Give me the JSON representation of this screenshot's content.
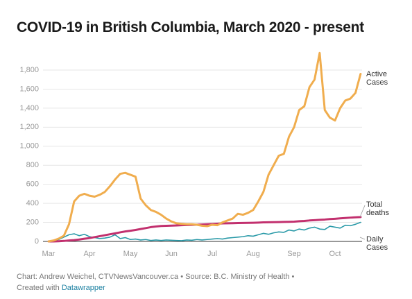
{
  "chart_data": {
    "type": "line",
    "title": "COVID-19 in British Columbia, March 2020 - present",
    "categories": [
      "Mar",
      null,
      null,
      null,
      null,
      null,
      null,
      null,
      "Apr",
      null,
      null,
      null,
      null,
      null,
      null,
      null,
      "May",
      null,
      null,
      null,
      null,
      null,
      null,
      null,
      "Jun",
      null,
      null,
      null,
      null,
      null,
      null,
      null,
      "Jul",
      null,
      null,
      null,
      null,
      null,
      null,
      null,
      "Aug",
      null,
      null,
      null,
      null,
      null,
      null,
      null,
      "Sep",
      null,
      null,
      null,
      null,
      null,
      null,
      null,
      "Oct",
      null,
      null,
      null,
      null,
      null
    ],
    "series": [
      {
        "name": "Active Cases",
        "color": "#f0ad4e",
        "values": [
          0,
          10,
          30,
          60,
          180,
          420,
          480,
          500,
          480,
          470,
          490,
          520,
          580,
          650,
          710,
          720,
          700,
          680,
          450,
          380,
          330,
          310,
          280,
          240,
          210,
          190,
          185,
          180,
          180,
          175,
          165,
          160,
          175,
          170,
          200,
          220,
          240,
          290,
          280,
          300,
          330,
          420,
          520,
          700,
          800,
          900,
          920,
          1100,
          1200,
          1380,
          1420,
          1620,
          1700,
          1980,
          1380,
          1300,
          1270,
          1400,
          1480,
          1500,
          1560,
          1760
        ]
      },
      {
        "name": "Total deaths",
        "color": "#c2306e",
        "values": [
          0,
          0,
          2,
          5,
          10,
          14,
          20,
          28,
          35,
          45,
          55,
          65,
          75,
          85,
          95,
          105,
          112,
          120,
          130,
          140,
          150,
          157,
          162,
          164,
          166,
          168,
          170,
          172,
          174,
          176,
          178,
          180,
          183,
          186,
          189,
          190,
          191,
          193,
          194,
          195,
          196,
          198,
          200,
          201,
          202,
          203,
          205,
          206,
          208,
          212,
          215,
          220,
          223,
          227,
          230,
          235,
          238,
          242,
          246,
          250,
          253,
          256
        ]
      },
      {
        "name": "Daily Cases",
        "color": "#2a9aa8",
        "values": [
          0,
          5,
          20,
          45,
          70,
          80,
          60,
          75,
          50,
          40,
          30,
          35,
          45,
          70,
          30,
          40,
          20,
          25,
          15,
          20,
          10,
          15,
          10,
          15,
          12,
          10,
          8,
          15,
          12,
          20,
          15,
          20,
          25,
          30,
          25,
          35,
          40,
          45,
          50,
          60,
          55,
          70,
          85,
          75,
          90,
          100,
          95,
          120,
          110,
          130,
          120,
          140,
          150,
          130,
          125,
          160,
          150,
          140,
          170,
          165,
          180,
          200
        ]
      }
    ],
    "ylim": [
      0,
      1800
    ],
    "yticks": [
      0,
      200,
      400,
      600,
      800,
      {
        "value": 1000,
        "label": "1,000"
      },
      {
        "value": 1200,
        "label": "1,200"
      },
      {
        "value": 1400,
        "label": "1,400"
      },
      {
        "value": 1600,
        "label": "1,600"
      },
      {
        "value": 1800,
        "label": "1,800"
      }
    ],
    "grid": true
  },
  "footer": {
    "credit": "Chart: Andrew Weichel, CTVNewsVancouver.ca • Source: B.C. Ministry of Health •",
    "created_with": "Created with",
    "tool": "Datawrapper"
  }
}
